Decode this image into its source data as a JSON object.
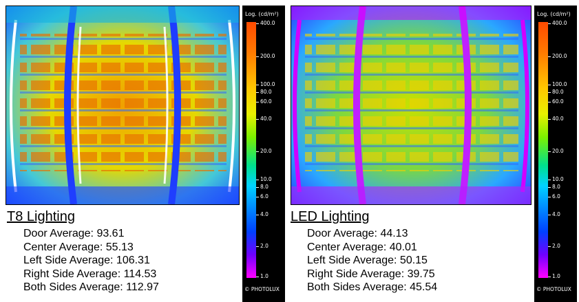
{
  "panels": [
    {
      "title": "T8 Lighting",
      "stats": [
        {
          "label": "Door Average: 93.61"
        },
        {
          "label": "Center Average: 55.13"
        },
        {
          "label": "Left Side Average: 106.31"
        },
        {
          "label": "Right Side Average: 114.53"
        },
        {
          "label": "Both Sides Average: 112.97"
        }
      ],
      "scale": {
        "title": "Log. (cd/m²)",
        "ticks": [
          "400.0",
          "200.0",
          "100.0",
          "80.0",
          "60.0",
          "40.0",
          "20.0",
          "10.0",
          "8.0",
          "6.0",
          "4.0",
          "2.0",
          "1.0"
        ],
        "credit": "© PHOTOLUX"
      }
    },
    {
      "title": "LED Lighting",
      "stats": [
        {
          "label": "Door Average: 44.13"
        },
        {
          "label": "Center Average: 40.01"
        },
        {
          "label": "Left Side Average: 50.15"
        },
        {
          "label": "Right Side Average: 39.75"
        },
        {
          "label": "Both Sides Average: 45.54"
        }
      ],
      "scale": {
        "title": "Log. (cd/m²)",
        "ticks": [
          "400.0",
          "200.0",
          "100.0",
          "80.0",
          "60.0",
          "40.0",
          "20.0",
          "10.0",
          "8.0",
          "6.0",
          "4.0",
          "2.0",
          "1.0"
        ],
        "credit": "© PHOTOLUX"
      }
    }
  ]
}
